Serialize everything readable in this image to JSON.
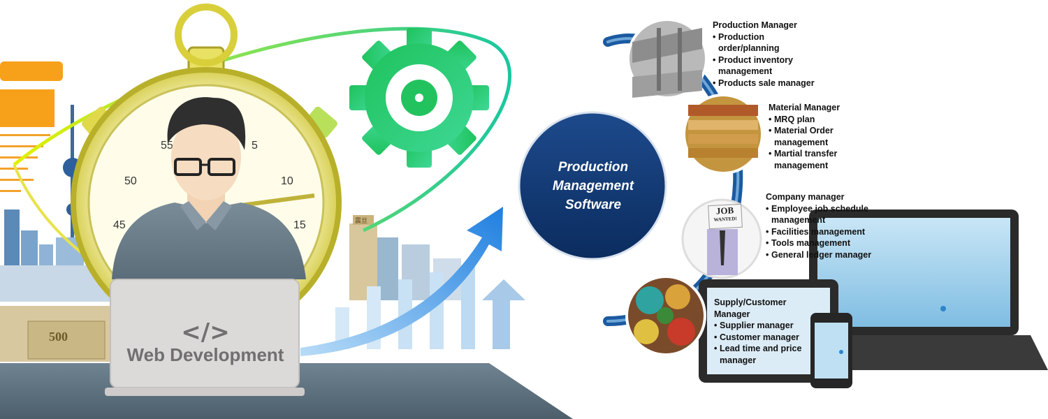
{
  "left_panel": {
    "code_symbol": "</>",
    "caption": "Web Development",
    "stopwatch_numbers": [
      "55",
      "5",
      "50",
      "10",
      "45",
      "15"
    ],
    "billboard_text": "震旦"
  },
  "center": {
    "title": "Production Management Software"
  },
  "modules": [
    {
      "title": "Production  Manager",
      "items": [
        "Production order/planning",
        "Product inventory management",
        "Products sale manager"
      ]
    },
    {
      "title": "Material Manager",
      "items": [
        "MRQ plan",
        "Material Order management",
        "Martial transfer management"
      ]
    },
    {
      "title": "Company manager",
      "items": [
        "Employee job schedule management",
        "Facilities management",
        "Tools management",
        "General ledger manager"
      ]
    },
    {
      "title": "Supply/Customer Manager",
      "items": [
        "Supplier manager",
        "Customer manager",
        "Lead time and price manager"
      ]
    }
  ],
  "job_sign": {
    "line1": "JOB",
    "line2": "WANTED!"
  }
}
